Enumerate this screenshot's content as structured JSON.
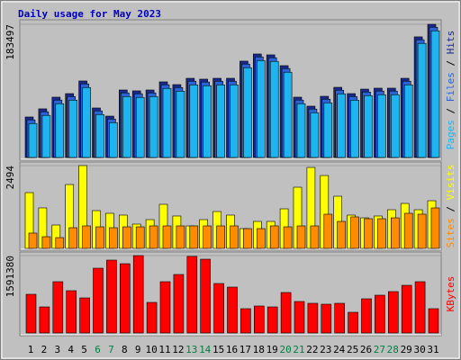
{
  "chart_data": [
    {
      "type": "bar",
      "title": "Daily usage for May 2023",
      "legend_separator": " / ",
      "ylim": [
        0,
        183497
      ],
      "yticks": [
        183497
      ],
      "series": [
        {
          "name": "Hits",
          "color": "#1a2a8c",
          "values": [
            55800,
            67000,
            83100,
            88000,
            105400,
            68200,
            57000,
            93000,
            91800,
            93000,
            104200,
            100400,
            109100,
            107900,
            109100,
            109100,
            132700,
            142600,
            141400,
            126500,
            83100,
            70700,
            84300,
            96700,
            88000,
            94200,
            95500,
            95500,
            109100,
            166200,
            183497
          ]
        },
        {
          "name": "Files",
          "color": "#2a64d8",
          "values": [
            51800,
            63000,
            79100,
            84000,
            101400,
            64200,
            53000,
            89000,
            87800,
            89000,
            100200,
            96400,
            105100,
            103900,
            105100,
            105100,
            128700,
            138600,
            137400,
            122500,
            79100,
            66700,
            80300,
            92700,
            84000,
            90200,
            91500,
            91500,
            105100,
            162200,
            179500
          ]
        },
        {
          "name": "Pages",
          "color": "#1eb4f0",
          "values": [
            46800,
            58000,
            74100,
            79000,
            96400,
            59200,
            48000,
            84000,
            82800,
            84000,
            95200,
            91400,
            100100,
            98900,
            100100,
            100100,
            123700,
            133600,
            132400,
            117500,
            74100,
            61700,
            75300,
            87700,
            79000,
            85200,
            86500,
            86500,
            100100,
            157200,
            174500
          ]
        }
      ]
    },
    {
      "type": "bar",
      "legend_separator": " / ",
      "ylim": [
        0,
        2494
      ],
      "yticks": [
        2494
      ],
      "series": [
        {
          "name": "Visits",
          "color": "#ffff00",
          "values": [
            1680,
            1220,
            705,
            1924,
            2494,
            1138,
            1057,
            1003,
            732,
            867,
            1328,
            976,
            678,
            867,
            1111,
            1003,
            596,
            813,
            813,
            1192,
            1843,
            2439,
            2195,
            1572,
            1003,
            921,
            976,
            1165,
            1355,
            1165,
            1436
          ]
        },
        {
          "name": "Sites",
          "color": "#ff8c00",
          "values": [
            461,
            352,
            325,
            623,
            678,
            650,
            623,
            650,
            650,
            678,
            678,
            678,
            678,
            678,
            678,
            678,
            596,
            596,
            678,
            650,
            678,
            678,
            1030,
            813,
            949,
            894,
            894,
            921,
            1057,
            1030,
            1220
          ]
        }
      ]
    },
    {
      "type": "bar",
      "ylim": [
        0,
        1591380
      ],
      "yticks": [
        1591380
      ],
      "categories": [
        "1",
        "2",
        "3",
        "4",
        "5",
        "6",
        "7",
        "8",
        "9",
        "10",
        "11",
        "12",
        "13",
        "14",
        "15",
        "16",
        "17",
        "18",
        "19",
        "20",
        "21",
        "22",
        "23",
        "24",
        "25",
        "26",
        "27",
        "28",
        "29",
        "30",
        "31"
      ],
      "category_colors": [
        "#000",
        "#000",
        "#000",
        "#000",
        "#000",
        "#008040",
        "#008040",
        "#000",
        "#000",
        "#000",
        "#000",
        "#000",
        "#008040",
        "#008040",
        "#000",
        "#000",
        "#000",
        "#000",
        "#000",
        "#008040",
        "#008040",
        "#000",
        "#000",
        "#000",
        "#000",
        "#000",
        "#008040",
        "#008040",
        "#000",
        "#000",
        "#000"
      ],
      "series": [
        {
          "name": "KBytes",
          "color": "#ff0000",
          "values": [
            795700,
            536600,
            1054700,
            869700,
            721700,
            1332300,
            1498800,
            1424800,
            1591380,
            629100,
            1054700,
            1202800,
            1575000,
            1517300,
            1017700,
            943700,
            499600,
            555100,
            536600,
            832700,
            647600,
            610600,
            592100,
            610600,
            425600,
            703100,
            777200,
            851200,
            980700,
            1054700,
            499600
          ]
        }
      ]
    }
  ]
}
